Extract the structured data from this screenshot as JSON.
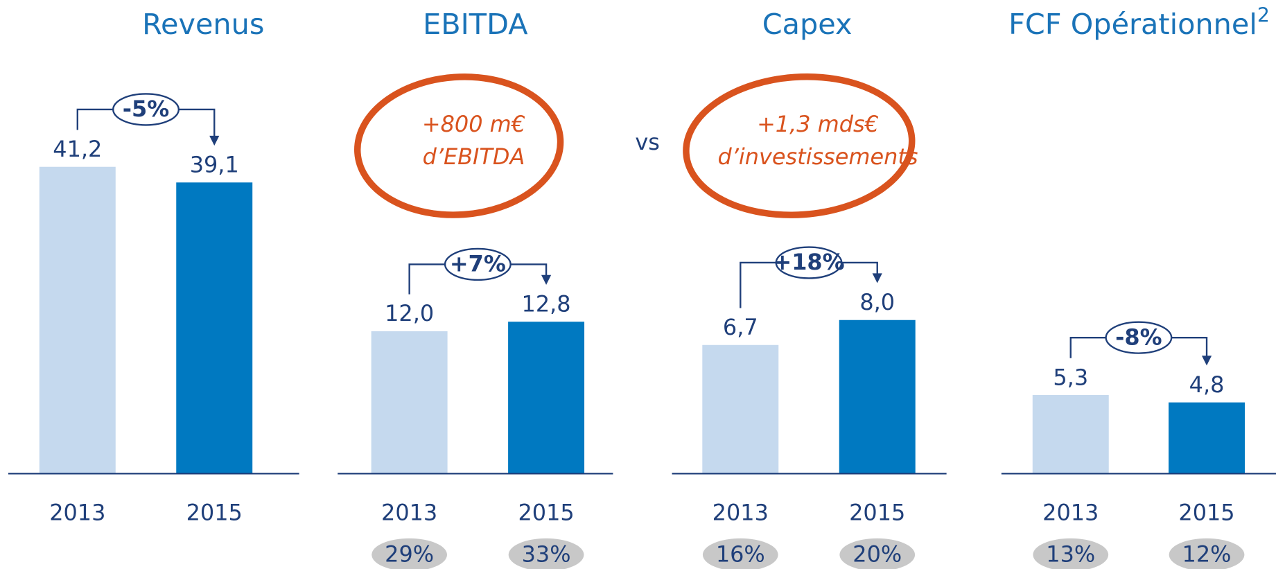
{
  "chart_data": [
    {
      "type": "bar",
      "title": "Revenus",
      "categories": [
        "2013",
        "2015"
      ],
      "values": [
        41.2,
        39.1
      ],
      "value_labels": [
        "41,2",
        "39,1"
      ],
      "colors": [
        "#c5d9ee",
        "#0079c1"
      ],
      "ylim": [
        0,
        52.6
      ],
      "change": "-5%"
    },
    {
      "type": "bar",
      "title": "EBITDA",
      "categories": [
        "2013",
        "2015"
      ],
      "values": [
        12.0,
        12.8
      ],
      "value_labels": [
        "12,0",
        "12,8"
      ],
      "colors": [
        "#c5d9ee",
        "#0079c1"
      ],
      "ylim": [
        0,
        33
      ],
      "change": "+7%",
      "margins": [
        "29%",
        "33%"
      ]
    },
    {
      "type": "bar",
      "title": "Capex",
      "categories": [
        "2013",
        "2015"
      ],
      "values": [
        6.7,
        8.0
      ],
      "value_labels": [
        "6,7",
        "8,0"
      ],
      "colors": [
        "#c5d9ee",
        "#0079c1"
      ],
      "ylim": [
        0,
        20.4
      ],
      "change": "+18%",
      "margins": [
        "16%",
        "20%"
      ]
    },
    {
      "type": "bar",
      "title": "FCF Opérationnel",
      "title_superscript": "2",
      "categories": [
        "2013",
        "2015"
      ],
      "values": [
        5.3,
        4.8
      ],
      "value_labels": [
        "5,3",
        "4,8"
      ],
      "colors": [
        "#c5d9ee",
        "#0079c1"
      ],
      "ylim": [
        0,
        26.4
      ],
      "change": "-8%",
      "margins": [
        "13%",
        "12%"
      ]
    }
  ],
  "annotations": {
    "ebitda_gain": "+800 m€",
    "ebitda_gain_unit": "d’EBITDA",
    "versus": "vs",
    "capex_gain": "+1,3 mds€",
    "capex_gain_unit": "d’investissements"
  }
}
